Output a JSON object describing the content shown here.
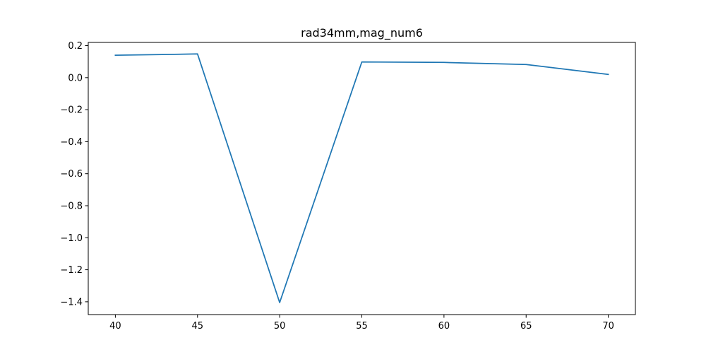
{
  "chart_data": {
    "type": "line",
    "title": "rad34mm,mag_num6",
    "xlabel": "",
    "ylabel": "",
    "x": [
      40,
      45,
      50,
      55,
      60,
      65,
      70
    ],
    "series": [
      {
        "values": [
          0.14,
          0.148,
          -1.405,
          0.098,
          0.095,
          0.082,
          0.02
        ],
        "color": "#1f77b4"
      }
    ],
    "xlim": [
      38.35,
      71.65
    ],
    "ylim": [
      -1.48,
      0.22
    ],
    "xticks": [
      40,
      45,
      50,
      55,
      60,
      65,
      70
    ],
    "xtick_labels": [
      "40",
      "45",
      "50",
      "55",
      "60",
      "65",
      "70"
    ],
    "yticks": [
      0.2,
      0.0,
      -0.2,
      -0.4,
      -0.6,
      -0.8,
      -1.0,
      -1.2,
      -1.4
    ],
    "ytick_labels": [
      "0.2",
      "0.0",
      "−0.2",
      "−0.4",
      "−0.6",
      "−0.8",
      "−1.0",
      "−1.2",
      "−1.4"
    ],
    "grid": false,
    "legend": "none"
  }
}
